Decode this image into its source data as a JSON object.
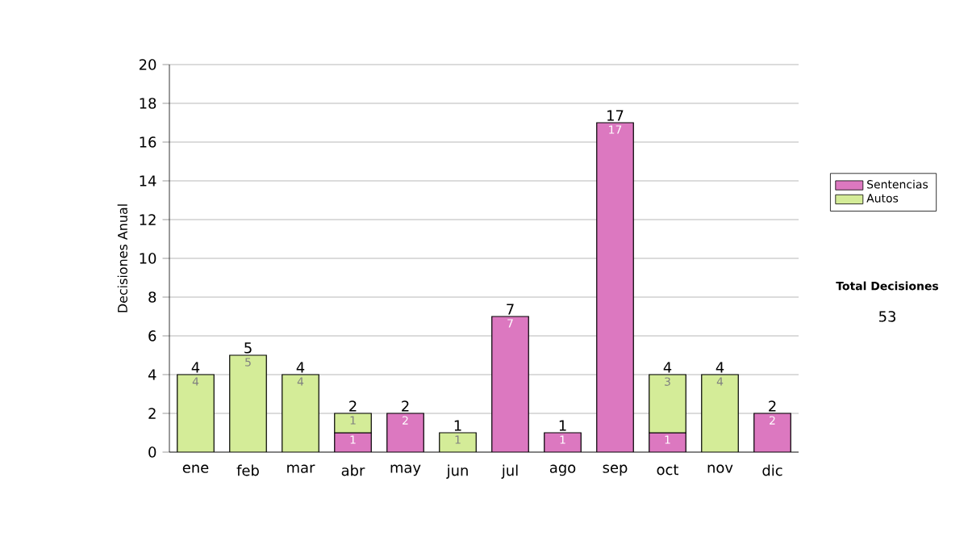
{
  "chart_data": {
    "type": "bar",
    "stacked": true,
    "ylabel": "Decisiones Anual",
    "categories": [
      "ene",
      "feb",
      "mar",
      "abr",
      "may",
      "jun",
      "jul",
      "ago",
      "sep",
      "oct",
      "nov",
      "dic"
    ],
    "series": [
      {
        "name": "Sentencias",
        "color": "#dc78c0",
        "values": [
          null,
          null,
          null,
          1,
          2,
          null,
          7,
          1,
          17,
          1,
          null,
          2
        ]
      },
      {
        "name": "Autos",
        "color": "#d4ec98",
        "values": [
          4,
          5,
          4,
          1,
          null,
          1,
          null,
          null,
          null,
          3,
          4,
          null
        ]
      }
    ],
    "totals": [
      "4",
      "5",
      "4",
      "2",
      "2",
      "1",
      "7",
      "1",
      "17",
      "4",
      "4",
      "2"
    ],
    "data_labels": true,
    "ylim": [
      0,
      20
    ],
    "yticks": [
      0,
      2,
      4,
      6,
      8,
      10,
      12,
      14,
      16,
      18,
      20
    ],
    "grid": "y",
    "legend": "right",
    "annotations": [
      "Total Decisiones",
      "53"
    ]
  }
}
